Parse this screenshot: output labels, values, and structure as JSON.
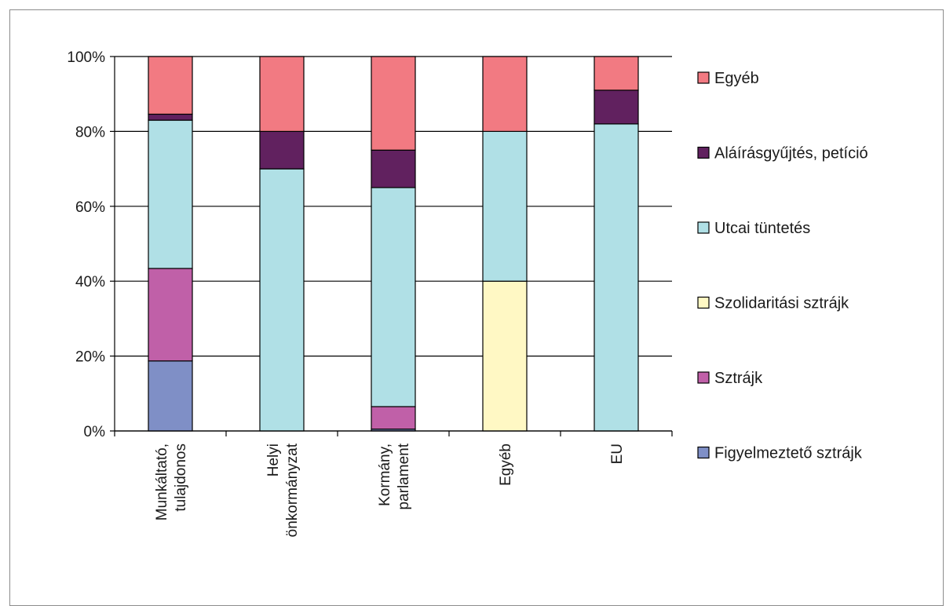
{
  "chart_data": {
    "type": "bar",
    "stacked": true,
    "percent": true,
    "title": "",
    "xlabel": "",
    "ylabel": "",
    "ylim": [
      0,
      100
    ],
    "yticks": [
      "0%",
      "20%",
      "40%",
      "60%",
      "80%",
      "100%"
    ],
    "grid": "horizontal",
    "legend_position": "right",
    "categories": [
      [
        "Munkáltató,",
        "tulajdonos"
      ],
      [
        "Helyi",
        "önkormányzat"
      ],
      [
        "Kormány,",
        "parlament"
      ],
      [
        "Egyéb"
      ],
      [
        "EU"
      ]
    ],
    "series": [
      {
        "name": "Figyelmeztető sztrájk",
        "color": "#7f8fc6",
        "values": [
          18.7,
          0,
          0.5,
          0,
          0
        ]
      },
      {
        "name": "Sztrájk",
        "color": "#c060a8",
        "values": [
          24.7,
          0,
          6.0,
          0,
          0
        ]
      },
      {
        "name": "Szolidaritási sztrájk",
        "color": "#fff8c4",
        "values": [
          0,
          0,
          0,
          40,
          0
        ]
      },
      {
        "name": "Utcai tüntetés",
        "color": "#b0e0e6",
        "values": [
          39.6,
          70,
          58.5,
          40,
          82
        ]
      },
      {
        "name": "Aláírásgyűjtés, petíció",
        "color": "#61215f",
        "values": [
          1.6,
          10,
          10,
          0,
          9
        ]
      },
      {
        "name": "Egyéb",
        "color": "#f27a82",
        "values": [
          15.4,
          20,
          25,
          20,
          9
        ]
      }
    ]
  }
}
